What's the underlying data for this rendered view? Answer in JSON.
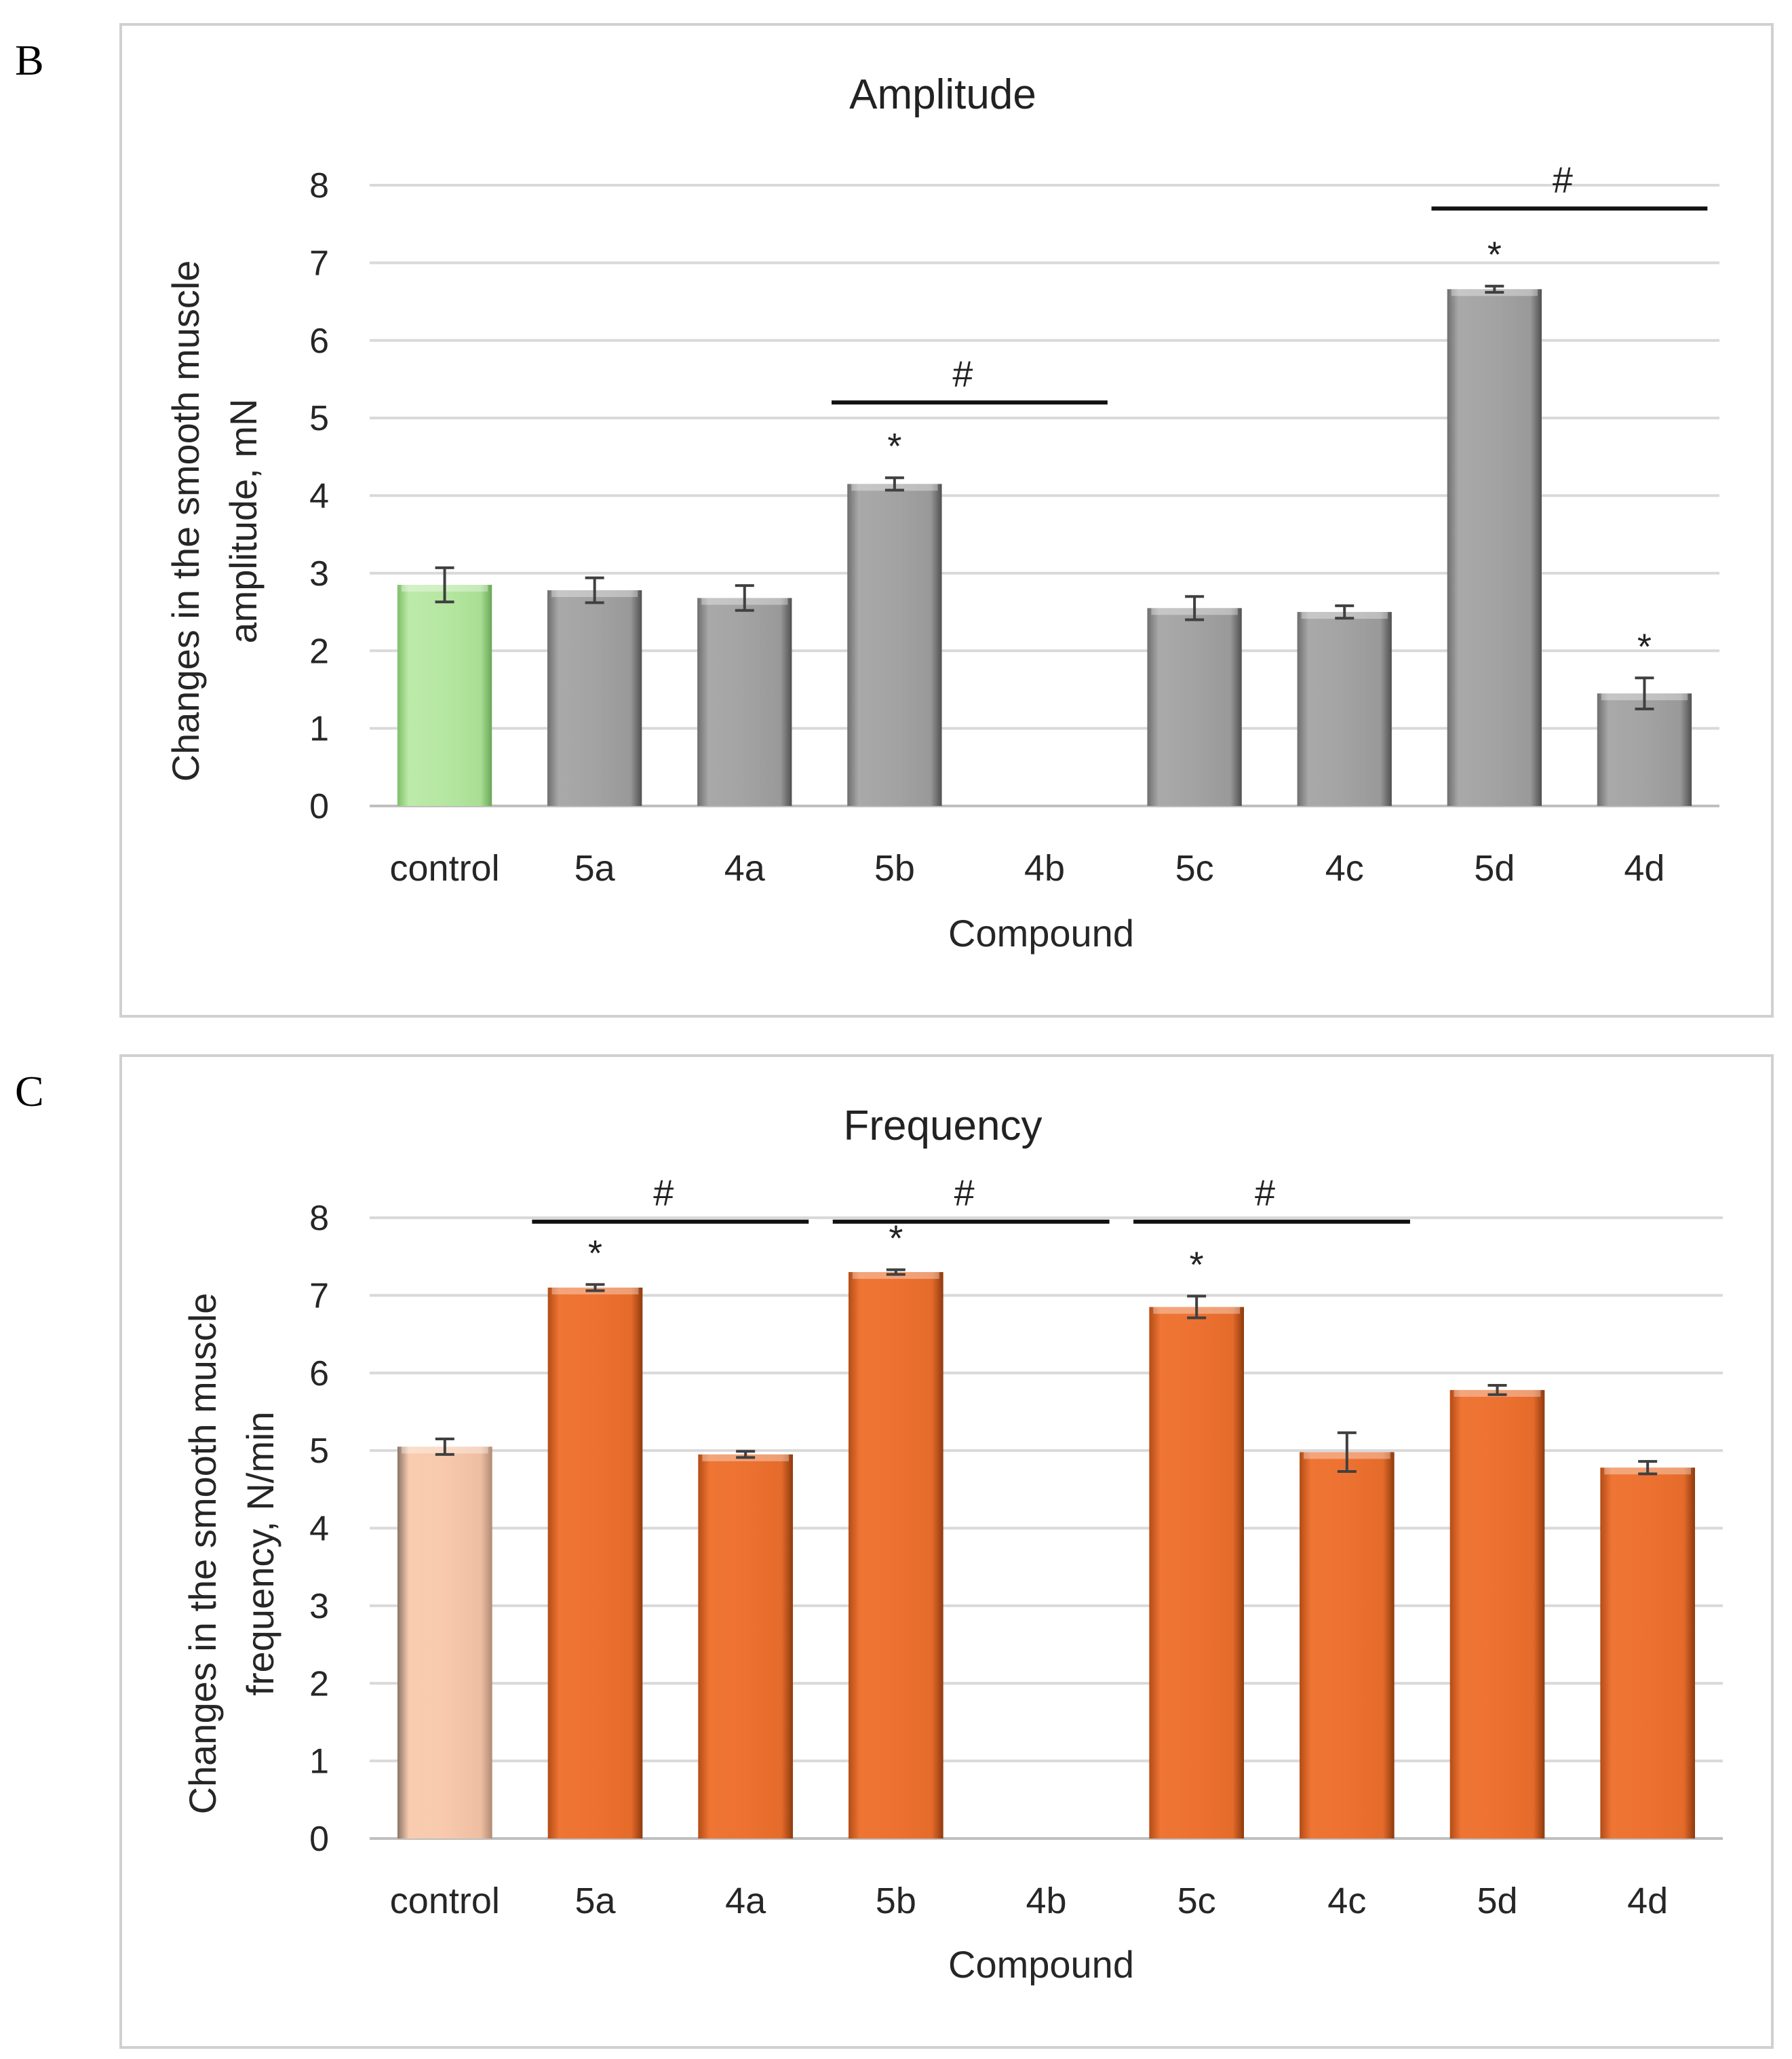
{
  "panels": [
    {
      "letter": "B",
      "chart_data": {
        "type": "bar",
        "title": "Amplitude",
        "xlabel": "Compound",
        "ylabel_lines": [
          "Changes in the smooth muscle",
          "amplitude, mN"
        ],
        "ylim": [
          0,
          8
        ],
        "yticks": [
          0,
          1,
          2,
          3,
          4,
          5,
          6,
          7,
          8
        ],
        "categories": [
          "control",
          "5a",
          "4a",
          "5b",
          "4b",
          "5c",
          "4c",
          "5d",
          "4d"
        ],
        "values": [
          2.85,
          2.78,
          2.68,
          4.15,
          null,
          2.55,
          2.5,
          6.66,
          1.45
        ],
        "errors": [
          0.22,
          0.16,
          0.16,
          0.08,
          null,
          0.15,
          0.08,
          0.04,
          0.2
        ],
        "significance_star": [
          "",
          "",
          "",
          "*",
          "",
          "",
          "",
          "*",
          "*"
        ],
        "comparison_brackets": [
          {
            "from": "5b",
            "to": "4b",
            "label": "#",
            "y": 5.2
          },
          {
            "from": "5d",
            "to": "4d",
            "label": "#",
            "y": 7.7
          }
        ],
        "colors": {
          "control": "#b5e6a1",
          "bars": "#a6a6a6",
          "gridline": "#d9d9d9"
        },
        "grid": true
      }
    },
    {
      "letter": "C",
      "chart_data": {
        "type": "bar",
        "title": "Frequency",
        "xlabel": "Compound",
        "ylabel_lines": [
          "Changes in the smooth muscle",
          "frequency, N/min"
        ],
        "ylim": [
          0,
          8
        ],
        "yticks": [
          0,
          1,
          2,
          3,
          4,
          5,
          6,
          7,
          8
        ],
        "categories": [
          "control",
          "5a",
          "4a",
          "5b",
          "4b",
          "5c",
          "4c",
          "5d",
          "4d"
        ],
        "values": [
          5.05,
          7.1,
          4.95,
          7.3,
          null,
          6.85,
          4.98,
          5.78,
          4.78
        ],
        "errors": [
          0.1,
          0.04,
          0.04,
          0.03,
          null,
          0.14,
          0.25,
          0.06,
          0.08
        ],
        "significance_star": [
          "",
          "*",
          "",
          "*",
          "",
          "*",
          "",
          "",
          ""
        ],
        "comparison_brackets": [
          {
            "from": "5a",
            "to": "4a",
            "label": "#",
            "y": 7.95
          },
          {
            "from": "5b",
            "to": "4b",
            "label": "#",
            "y": 7.95
          },
          {
            "from": "5c",
            "to": "4c",
            "label": "#",
            "y": 7.95
          }
        ],
        "colors": {
          "control": "#f8c9ad",
          "bars": "#ed7231",
          "gridline": "#d9d9d9"
        },
        "grid": true
      }
    }
  ]
}
